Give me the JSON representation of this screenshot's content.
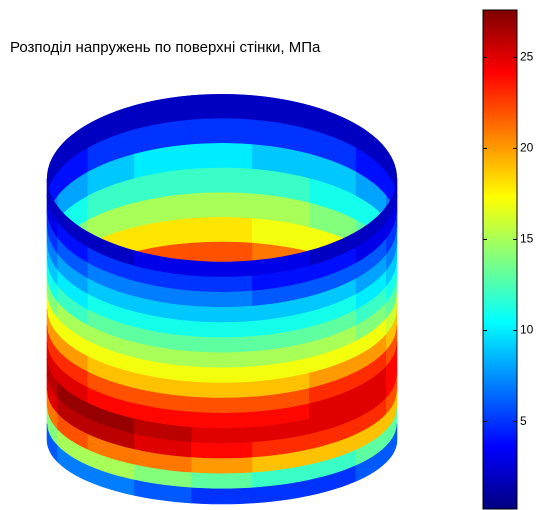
{
  "chart_data": {
    "type": "surface",
    "title": "Розподіл напружень по поверхні стінки, МПа",
    "colormap": "jet",
    "clim": [
      0.2,
      27.6
    ],
    "cticks": [
      5,
      10,
      15,
      20,
      25
    ],
    "front": {
      "values": [
        [
          2,
          2,
          2,
          3,
          3,
          3,
          2,
          2,
          2
        ],
        [
          3,
          4,
          5,
          5,
          5,
          4,
          4,
          3,
          3
        ],
        [
          5,
          6,
          7,
          7,
          7,
          6,
          6,
          6,
          5
        ],
        [
          7,
          8,
          9,
          9,
          9,
          9,
          9,
          8,
          7
        ],
        [
          9,
          10,
          11,
          11,
          11,
          11,
          11,
          10,
          9
        ],
        [
          11,
          12,
          13,
          13,
          13,
          13,
          13,
          12,
          11
        ],
        [
          14,
          15,
          15,
          15,
          15,
          15,
          15,
          14,
          13
        ],
        [
          17,
          17,
          17,
          17,
          17,
          17,
          17,
          17,
          16
        ],
        [
          20,
          20,
          19,
          19,
          19,
          19,
          20,
          20,
          19
        ],
        [
          23,
          23,
          22,
          22,
          22,
          22,
          23,
          23,
          22
        ],
        [
          25,
          25,
          24,
          24,
          24,
          24,
          25,
          25,
          24
        ],
        [
          26,
          27,
          27,
          26,
          25,
          25,
          25,
          25,
          24
        ],
        [
          25,
          26,
          26,
          25,
          24,
          23,
          23,
          23,
          22
        ],
        [
          21,
          22,
          21,
          21,
          20,
          19,
          19,
          19,
          19
        ],
        [
          14,
          15,
          15,
          14,
          13,
          12,
          12,
          13,
          13
        ],
        [
          6,
          7,
          7,
          6,
          5,
          5,
          5,
          6,
          6
        ]
      ]
    },
    "back": {
      "values": [
        [
          2,
          2,
          2,
          2,
          2,
          2,
          2,
          2,
          2
        ],
        [
          4,
          4,
          5,
          5,
          5,
          5,
          5,
          4,
          4
        ],
        [
          7,
          8,
          9,
          10,
          10,
          9,
          9,
          8,
          7
        ],
        [
          10,
          11,
          12,
          12,
          12,
          12,
          11,
          11,
          10
        ],
        [
          13,
          14,
          15,
          15,
          15,
          15,
          14,
          13,
          12
        ],
        [
          16,
          17,
          18,
          18,
          18,
          17,
          17,
          16,
          15
        ],
        [
          19,
          20,
          21,
          22,
          22,
          21,
          20,
          19,
          18
        ],
        [
          22,
          23,
          24,
          25,
          25,
          24,
          23,
          22,
          21
        ]
      ]
    }
  }
}
